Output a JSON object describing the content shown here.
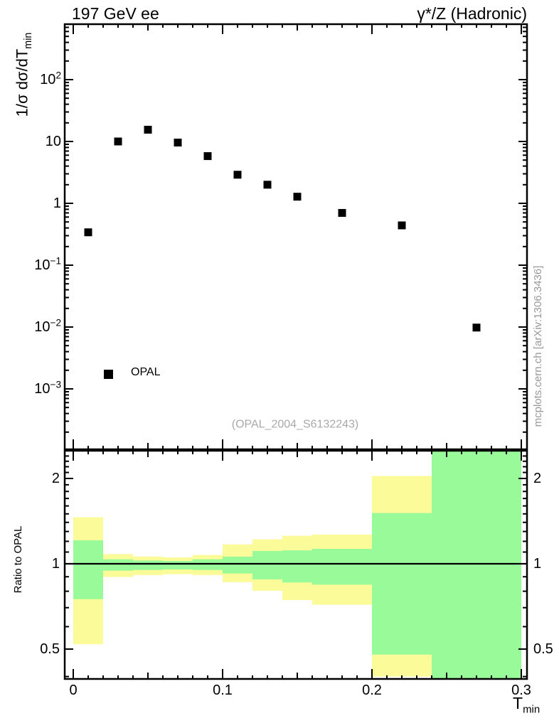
{
  "header": {
    "title_left": "197 GeV ee",
    "title_right": "γ*/Z (Hadronic)"
  },
  "main_panel": {
    "ylabel_main": "1/σ dσ/dT",
    "ylabel_sub": "min",
    "legend": {
      "label": "OPAL",
      "marker": "filled-square"
    },
    "watermark": "(OPAL_2004_S6132243)",
    "side_note": "mcplots.cern.ch [arXiv:1306.3436]"
  },
  "ratio_panel": {
    "ylabel": "Ratio to OPAL"
  },
  "x_axis": {
    "label_main": "T",
    "label_sub": "min"
  },
  "colors": {
    "band_yellow": "#fbfb9a",
    "band_green": "#98fa98",
    "marker": "#000000",
    "axis": "#000000",
    "watermark_gray": "#a9a9a9",
    "side_note_gray": "#999999"
  },
  "chart_data": [
    {
      "type": "scatter",
      "panel": "main",
      "xlabel": "T_min",
      "ylabel": "1/σ dσ/dT_min",
      "xscale": "linear",
      "yscale": "log",
      "xlim": [
        0,
        0.3
      ],
      "ylim": [
        0.00011,
        790
      ],
      "grid": false,
      "x_ticks": [
        {
          "v": 0,
          "label": "0"
        },
        {
          "v": 0.1,
          "label": "0.1"
        },
        {
          "v": 0.2,
          "label": "0.2"
        },
        {
          "v": 0.3,
          "label": "0.3"
        }
      ],
      "y_ticks": [
        {
          "v": 100,
          "label": "10^2"
        },
        {
          "v": 10,
          "label": "10"
        },
        {
          "v": 1,
          "label": "1"
        },
        {
          "v": 0.1,
          "label": "10^-1"
        },
        {
          "v": 0.01,
          "label": "10^-2"
        },
        {
          "v": 0.001,
          "label": "10^-3"
        }
      ],
      "series": [
        {
          "name": "OPAL",
          "marker": "filled-square",
          "color": "#000000",
          "points": [
            [
              0.01,
              0.34
            ],
            [
              0.03,
              10.0
            ],
            [
              0.05,
              15.5
            ],
            [
              0.07,
              9.6
            ],
            [
              0.09,
              5.8
            ],
            [
              0.11,
              2.9
            ],
            [
              0.13,
              2.0
            ],
            [
              0.15,
              1.28
            ],
            [
              0.18,
              0.7
            ],
            [
              0.22,
              0.44
            ],
            [
              0.27,
              0.0098
            ]
          ]
        }
      ]
    },
    {
      "type": "ratio-bands",
      "panel": "ratio",
      "ylabel": "Ratio to OPAL",
      "yscale": "log",
      "ylim": [
        0.392,
        2.5
      ],
      "reference_line": 1,
      "y_ticks": [
        {
          "v": 2,
          "label": "2"
        },
        {
          "v": 1,
          "label": "1"
        },
        {
          "v": 0.5,
          "label": "0.5"
        }
      ],
      "bands": [
        {
          "xlo": 0.0,
          "xhi": 0.02,
          "yellow": [
            0.52,
            1.46
          ],
          "green": [
            0.75,
            1.21
          ]
        },
        {
          "xlo": 0.02,
          "xhi": 0.04,
          "yellow": [
            0.898,
            1.082
          ],
          "green": [
            0.946,
            1.037
          ]
        },
        {
          "xlo": 0.04,
          "xhi": 0.06,
          "yellow": [
            0.912,
            1.061
          ],
          "green": [
            0.951,
            1.027
          ]
        },
        {
          "xlo": 0.06,
          "xhi": 0.08,
          "yellow": [
            0.919,
            1.053
          ],
          "green": [
            0.955,
            1.023
          ]
        },
        {
          "xlo": 0.08,
          "xhi": 0.1,
          "yellow": [
            0.912,
            1.074
          ],
          "green": [
            0.951,
            1.037
          ]
        },
        {
          "xlo": 0.1,
          "xhi": 0.12,
          "yellow": [
            0.861,
            1.17
          ],
          "green": [
            0.924,
            1.06
          ]
        },
        {
          "xlo": 0.12,
          "xhi": 0.14,
          "yellow": [
            0.803,
            1.22
          ],
          "green": [
            0.881,
            1.11
          ]
        },
        {
          "xlo": 0.14,
          "xhi": 0.16,
          "yellow": [
            0.745,
            1.255
          ],
          "green": [
            0.859,
            1.115
          ]
        },
        {
          "xlo": 0.16,
          "xhi": 0.2,
          "yellow": [
            0.717,
            1.268
          ],
          "green": [
            0.844,
            1.129
          ]
        },
        {
          "xlo": 0.2,
          "xhi": 0.24,
          "yellow": [
            0.4,
            2.04
          ],
          "green": [
            0.478,
            1.51
          ]
        },
        {
          "xlo": 0.24,
          "xhi": 0.3,
          "yellow": [
            0.39,
            2.5
          ],
          "green": [
            0.39,
            2.5
          ]
        }
      ]
    }
  ]
}
